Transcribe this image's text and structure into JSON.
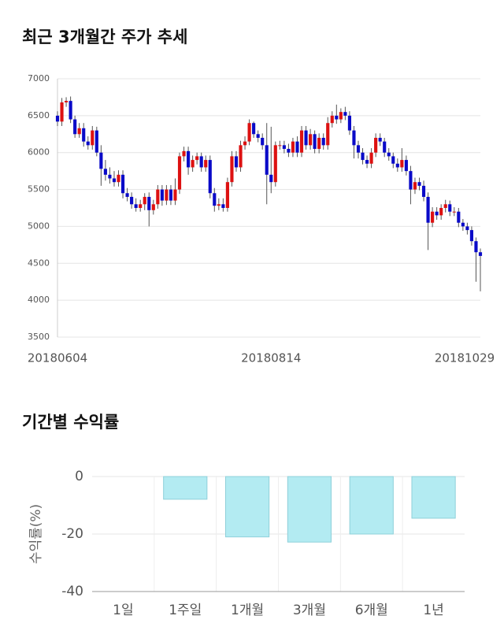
{
  "chart_data": [
    {
      "type": "candlestick",
      "title": "최근 3개월간 주가 추세",
      "categories": [
        "20180604",
        null,
        null,
        null,
        null,
        null,
        null,
        null,
        null,
        null,
        null,
        null,
        null,
        null,
        null,
        null,
        null,
        null,
        null,
        null,
        null,
        null,
        null,
        null,
        null,
        null,
        null,
        null,
        null,
        null,
        null,
        null,
        null,
        null,
        null,
        null,
        null,
        null,
        null,
        null,
        null,
        null,
        null,
        null,
        null,
        null,
        null,
        null,
        null,
        "20180814",
        null,
        null,
        null,
        null,
        null,
        null,
        null,
        null,
        null,
        null,
        null,
        null,
        null,
        null,
        null,
        null,
        null,
        null,
        null,
        null,
        null,
        null,
        null,
        null,
        null,
        null,
        null,
        null,
        null,
        null,
        null,
        null,
        null,
        null,
        null,
        null,
        null,
        null,
        null,
        null,
        null,
        null,
        null,
        null,
        null,
        null,
        null,
        "20181029"
      ],
      "open": [
        6500,
        6420,
        6680,
        6700,
        6450,
        6250,
        6330,
        6150,
        6100,
        6300,
        6000,
        5780,
        5700,
        5650,
        5600,
        5700,
        5450,
        5400,
        5300,
        5250,
        5300,
        5400,
        5220,
        5300,
        5500,
        5350,
        5500,
        5350,
        5500,
        5950,
        6020,
        5800,
        5900,
        5950,
        5800,
        5900,
        5450,
        5280,
        5300,
        5250,
        5600,
        5950,
        5800,
        6100,
        6150,
        6400,
        6250,
        6200,
        6100,
        5700,
        5600,
        6100,
        6100,
        6050,
        6000,
        6150,
        6000,
        6300,
        6100,
        6250,
        6050,
        6200,
        6100,
        6400,
        6500,
        6450,
        6550,
        6500,
        6300,
        6100,
        6000,
        5900,
        5850,
        6000,
        6200,
        6150,
        6000,
        5950,
        5850,
        5800,
        5900,
        5750,
        5500,
        5600,
        5550,
        5400,
        5050,
        5200,
        5150,
        5250,
        5300,
        5200,
        5200,
        5050,
        5000,
        4950,
        4800,
        4650
      ],
      "high": [
        6560,
        6740,
        6750,
        6760,
        6500,
        6400,
        6400,
        6220,
        6360,
        6350,
        6100,
        5900,
        5800,
        5750,
        5760,
        5760,
        5520,
        5460,
        5380,
        5360,
        5450,
        5460,
        5360,
        5560,
        5560,
        5560,
        5560,
        5650,
        6000,
        6080,
        6080,
        5960,
        6000,
        6000,
        5960,
        5960,
        5520,
        5380,
        5380,
        5660,
        6020,
        6020,
        6160,
        6220,
        6450,
        6420,
        6300,
        6260,
        6400,
        6350,
        6150,
        6160,
        6160,
        6120,
        6200,
        6220,
        6360,
        6360,
        6320,
        6300,
        6260,
        6260,
        6480,
        6560,
        6650,
        6600,
        6620,
        6560,
        6360,
        6160,
        6060,
        5960,
        6060,
        6260,
        6260,
        6200,
        6060,
        6000,
        5920,
        6060,
        5960,
        5820,
        5660,
        5660,
        5620,
        5460,
        5260,
        5260,
        5300,
        5360,
        5350,
        5260,
        5250,
        5100,
        5050,
        5000,
        4850,
        4700
      ],
      "low": [
        6360,
        6360,
        6620,
        6400,
        6200,
        6200,
        6080,
        6040,
        6040,
        5950,
        5550,
        5620,
        5580,
        5540,
        5540,
        5380,
        5340,
        5240,
        5200,
        5200,
        5220,
        5000,
        5160,
        5240,
        5280,
        5290,
        5290,
        5290,
        5440,
        5880,
        5700,
        5740,
        5840,
        5740,
        5740,
        5380,
        5200,
        5220,
        5200,
        5200,
        5540,
        5740,
        5740,
        6040,
        6100,
        6200,
        6140,
        6040,
        5300,
        5450,
        5540,
        6040,
        5990,
        5940,
        5940,
        5940,
        5940,
        6040,
        6040,
        5990,
        5990,
        6040,
        6040,
        6340,
        6390,
        6400,
        6440,
        6240,
        5920,
        5920,
        5840,
        5790,
        5790,
        5940,
        6090,
        5940,
        5890,
        5790,
        5740,
        5740,
        5690,
        5300,
        5440,
        5490,
        5340,
        4680,
        4990,
        5090,
        5090,
        5190,
        5140,
        5140,
        4990,
        4940,
        4890,
        4740,
        4250,
        4120
      ],
      "close": [
        6420,
        6680,
        6700,
        6450,
        6250,
        6330,
        6150,
        6100,
        6300,
        6000,
        5780,
        5700,
        5650,
        5600,
        5700,
        5450,
        5400,
        5300,
        5250,
        5300,
        5400,
        5220,
        5300,
        5500,
        5350,
        5500,
        5350,
        5500,
        5950,
        6020,
        5800,
        5900,
        5950,
        5800,
        5900,
        5450,
        5280,
        5300,
        5250,
        5600,
        5950,
        5800,
        6100,
        6150,
        6400,
        6250,
        6200,
        6100,
        5700,
        5600,
        6100,
        6100,
        6050,
        6000,
        6150,
        6000,
        6300,
        6100,
        6250,
        6050,
        6200,
        6100,
        6400,
        6500,
        6450,
        6550,
        6500,
        6300,
        6100,
        6000,
        5900,
        5850,
        6000,
        6200,
        6150,
        6000,
        5950,
        5850,
        5800,
        5900,
        5750,
        5500,
        5600,
        5550,
        5400,
        5050,
        5200,
        5150,
        5250,
        5300,
        5200,
        5200,
        5050,
        5000,
        4950,
        4800,
        4650,
        4600
      ],
      "up_color": "#dd1111",
      "down_color": "#0a0ac8",
      "ylim": [
        3500,
        7000
      ],
      "yticks": [
        3500,
        4000,
        4500,
        5000,
        5500,
        6000,
        6500,
        7000
      ],
      "grid": true
    },
    {
      "type": "bar",
      "title": "기간별 수익률",
      "y_label": "수익률(%)",
      "categories": [
        "1일",
        "1주일",
        "1개월",
        "3개월",
        "6개월",
        "1년"
      ],
      "values": [
        0,
        -7.9,
        -21,
        -22.8,
        -20,
        -14.5
      ],
      "color": "#b3ebf2",
      "edge_color": "#8fd0da",
      "ylim": [
        -40,
        0
      ],
      "yticks": [
        0,
        -20,
        -40
      ],
      "grid": true
    }
  ]
}
